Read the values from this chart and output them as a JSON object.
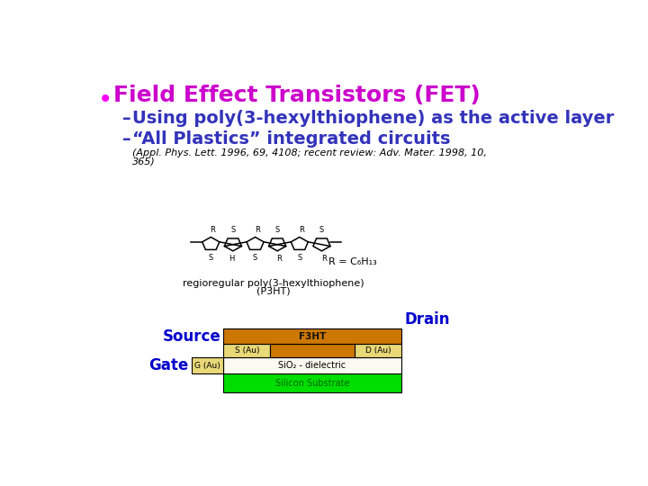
{
  "bg_color": "#ffffff",
  "bullet_color": "#ff00ff",
  "title_text": "Field Effect Transistors (FET)",
  "title_color": "#cc00cc",
  "title_fontsize": 18,
  "sub1_text": "Using poly(3-hexylthiophene) as the active layer",
  "sub2_text": "“All Plastics” integrated circuits",
  "sub_color": "#3333bb",
  "sub_fontsize": 14,
  "ref_line1": "(Appl. Phys. Lett. 1996, 69, 4108; recent review: Adv. Mater. 1998, 10,",
  "ref_line2": "365)",
  "ref_color": "#000000",
  "ref_fontsize": 8,
  "drain_label": "Drain",
  "source_label": "Source",
  "gate_label": "Gate",
  "label_color": "#0000cc",
  "label_fontsize": 12,
  "p3ht_label": "F3HT",
  "s_au_label": "S (Au)",
  "d_au_label": "D (Au)",
  "g_au_label": "G (Au)",
  "sio2_label": "SiO₂ - dielectric",
  "silicon_label": "Silicon Substrate",
  "p3ht_color": "#cc7700",
  "au_color": "#e8d878",
  "sio2_color": "#fafaf0",
  "silicon_color": "#00dd00",
  "note1": "regioregular poly(3-hexylthiophene)",
  "note2": "(P3HT)",
  "r_formula": "R = C₆H₁₃"
}
